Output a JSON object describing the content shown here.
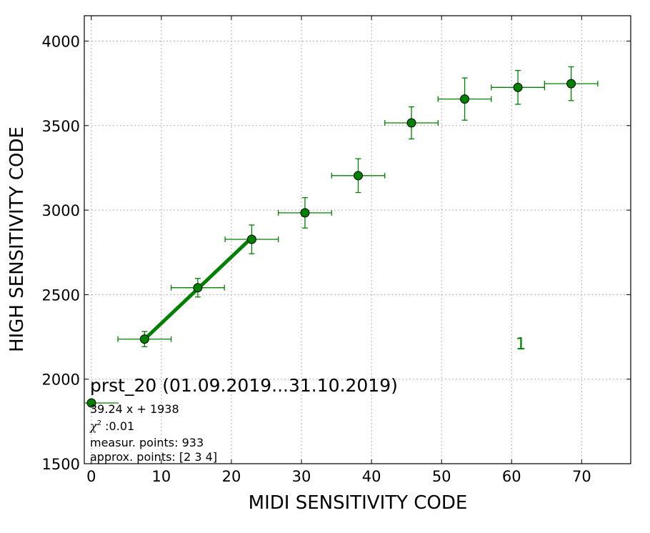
{
  "chart_data": {
    "type": "scatter",
    "xlabel": "MIDI SENSITIVITY CODE",
    "ylabel": "HIGH SENSITIVITY CODE",
    "xlim": [
      -1,
      77
    ],
    "ylim": [
      1500,
      4150
    ],
    "xticks": [
      "0",
      "10",
      "20",
      "30",
      "40",
      "50",
      "60",
      "70"
    ],
    "yticks": [
      "1500",
      "2000",
      "2500",
      "3000",
      "3500",
      "4000"
    ],
    "grid": true,
    "series_color": "#008000",
    "marker_color": "#008000",
    "points": [
      {
        "x": 7.6,
        "y": 2237,
        "xerr": 3.8,
        "yerr": 45
      },
      {
        "x": 15.2,
        "y": 2541,
        "xerr": 3.8,
        "yerr": 55
      },
      {
        "x": 22.9,
        "y": 2827,
        "xerr": 3.8,
        "yerr": 85
      },
      {
        "x": 30.5,
        "y": 2984,
        "xerr": 3.8,
        "yerr": 90
      },
      {
        "x": 38.1,
        "y": 3204,
        "xerr": 3.8,
        "yerr": 100
      },
      {
        "x": 45.7,
        "y": 3516,
        "xerr": 3.8,
        "yerr": 95
      },
      {
        "x": 53.3,
        "y": 3657,
        "xerr": 3.8,
        "yerr": 125
      },
      {
        "x": 60.9,
        "y": 3726,
        "xerr": 3.8,
        "yerr": 100
      },
      {
        "x": 68.5,
        "y": 3748,
        "xerr": 3.8,
        "yerr": 100
      }
    ],
    "fit_line": {
      "x": [
        7.6,
        22.9
      ],
      "y": [
        2236,
        2837
      ]
    },
    "annotation": {
      "text": "1",
      "x": 61.3,
      "y": 2210
    },
    "legend": {
      "placement": "bottom-left",
      "title": "prst_20 (01.09.2019...31.10.2019)",
      "equation": "39.24 x + 1938",
      "chi_label": "χ",
      "chi_sup": "2",
      "chi_value": " :0.01",
      "measur": "measur. points: 933",
      "approx": "approx. points: [2 3 4]"
    }
  }
}
